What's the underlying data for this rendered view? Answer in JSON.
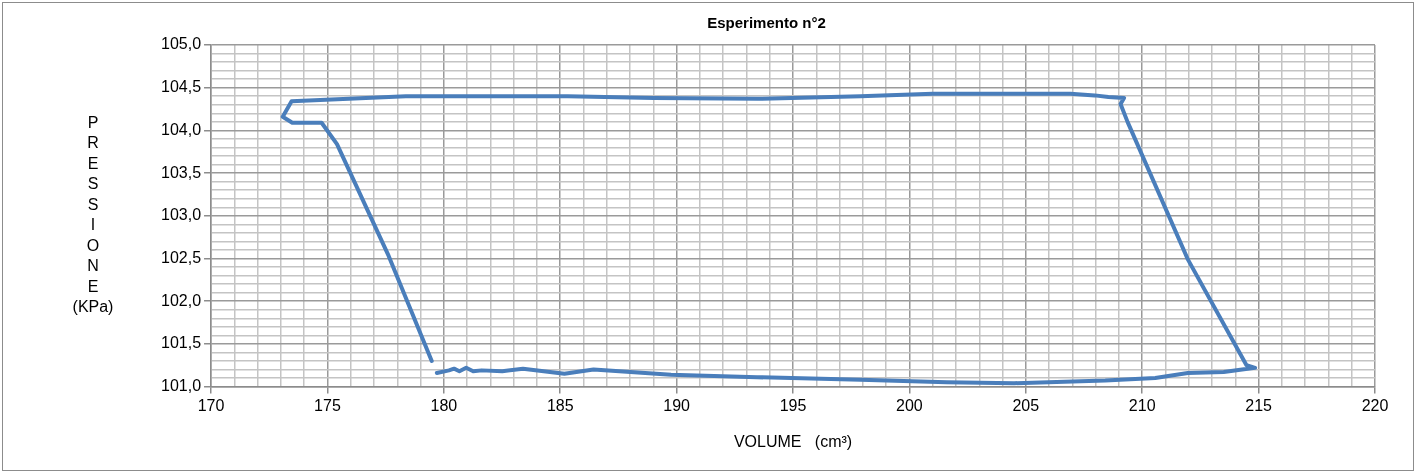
{
  "chart_data": {
    "type": "line",
    "title": "Esperimento n°2",
    "xlabel": "VOLUME   (cm³)",
    "ylabel": "PRESSIONE (KPa)",
    "series": [
      {
        "color": "#4a7ebb",
        "x": [
          179.7,
          180.22,
          180.44,
          180.67,
          180.96,
          181.26,
          181.63,
          182.51,
          183.4,
          185.18,
          186.43,
          189.76,
          193.46,
          197.9,
          201.6,
          204.5,
          208.41,
          210.56,
          211.96,
          213.5,
          214.85,
          214.48,
          211.96,
          209.37,
          209.07,
          209.22,
          208.55,
          207.96,
          206.92,
          205.3,
          201.0,
          197.9,
          193.46,
          189.02,
          185.33,
          178.37,
          173.46,
          173.08,
          173.49,
          174.75,
          175.41,
          177.63,
          179.48
        ],
        "values": [
          101.16,
          101.19,
          101.21,
          101.18,
          101.22,
          101.18,
          101.19,
          101.18,
          101.21,
          101.15,
          101.2,
          101.14,
          101.11,
          101.08,
          101.05,
          101.04,
          101.07,
          101.1,
          101.16,
          101.17,
          101.22,
          101.25,
          102.49,
          104.1,
          104.31,
          104.38,
          104.39,
          104.41,
          104.43,
          104.43,
          104.43,
          104.4,
          104.37,
          104.38,
          104.4,
          104.4,
          104.34,
          104.16,
          104.09,
          104.09,
          103.84,
          102.53,
          101.3
        ]
      }
    ],
    "xlim": [
      170,
      220
    ],
    "xticks": [
      170,
      {
        "value": 171,
        "label": null
      },
      {
        "value": 172,
        "label": null
      },
      {
        "value": 173,
        "label": null
      },
      {
        "value": 174,
        "label": null
      },
      175,
      {
        "value": 176,
        "label": null
      },
      {
        "value": 177,
        "label": null
      },
      {
        "value": 178,
        "label": null
      },
      {
        "value": 179,
        "label": null
      },
      180,
      {
        "value": 181,
        "label": null
      },
      {
        "value": 182,
        "label": null
      },
      {
        "value": 183,
        "label": null
      },
      {
        "value": 184,
        "label": null
      },
      185,
      {
        "value": 186,
        "label": null
      },
      {
        "value": 187,
        "label": null
      },
      {
        "value": 188,
        "label": null
      },
      {
        "value": 189,
        "label": null
      },
      190,
      {
        "value": 191,
        "label": null
      },
      {
        "value": 192,
        "label": null
      },
      {
        "value": 193,
        "label": null
      },
      {
        "value": 194,
        "label": null
      },
      195,
      {
        "value": 196,
        "label": null
      },
      {
        "value": 197,
        "label": null
      },
      {
        "value": 198,
        "label": null
      },
      {
        "value": 199,
        "label": null
      },
      200,
      {
        "value": 201,
        "label": null
      },
      {
        "value": 202,
        "label": null
      },
      {
        "value": 203,
        "label": null
      },
      {
        "value": 204,
        "label": null
      },
      205,
      {
        "value": 206,
        "label": null
      },
      {
        "value": 207,
        "label": null
      },
      {
        "value": 208,
        "label": null
      },
      {
        "value": 209,
        "label": null
      },
      210,
      {
        "value": 211,
        "label": null
      },
      {
        "value": 212,
        "label": null
      },
      {
        "value": 213,
        "label": null
      },
      {
        "value": 214,
        "label": null
      },
      215,
      {
        "value": 216,
        "label": null
      },
      {
        "value": 217,
        "label": null
      },
      {
        "value": 218,
        "label": null
      },
      {
        "value": 219,
        "label": null
      },
      220
    ],
    "ylim": [
      101,
      105
    ],
    "yticks": [
      {
        "value": 101,
        "label": "101,0"
      },
      {
        "value": 101.1,
        "label": null
      },
      {
        "value": 101.2,
        "label": null
      },
      {
        "value": 101.3,
        "label": null
      },
      {
        "value": 101.4,
        "label": null
      },
      {
        "value": 101.5,
        "label": "101,5"
      },
      {
        "value": 101.6,
        "label": null
      },
      {
        "value": 101.7,
        "label": null
      },
      {
        "value": 101.8,
        "label": null
      },
      {
        "value": 101.9,
        "label": null
      },
      {
        "value": 102,
        "label": "102,0"
      },
      {
        "value": 102.1,
        "label": null
      },
      {
        "value": 102.2,
        "label": null
      },
      {
        "value": 102.3,
        "label": null
      },
      {
        "value": 102.4,
        "label": null
      },
      {
        "value": 102.5,
        "label": "102,5"
      },
      {
        "value": 102.6,
        "label": null
      },
      {
        "value": 102.7,
        "label": null
      },
      {
        "value": 102.8,
        "label": null
      },
      {
        "value": 102.9,
        "label": null
      },
      {
        "value": 103,
        "label": "103,0"
      },
      {
        "value": 103.1,
        "label": null
      },
      {
        "value": 103.2,
        "label": null
      },
      {
        "value": 103.3,
        "label": null
      },
      {
        "value": 103.4,
        "label": null
      },
      {
        "value": 103.5,
        "label": "103,5"
      },
      {
        "value": 103.6,
        "label": null
      },
      {
        "value": 103.7,
        "label": null
      },
      {
        "value": 103.8,
        "label": null
      },
      {
        "value": 103.9,
        "label": null
      },
      {
        "value": 104,
        "label": "104,0"
      },
      {
        "value": 104.1,
        "label": null
      },
      {
        "value": 104.2,
        "label": null
      },
      {
        "value": 104.3,
        "label": null
      },
      {
        "value": 104.4,
        "label": null
      },
      {
        "value": 104.5,
        "label": "104,5"
      },
      {
        "value": 104.6,
        "label": null
      },
      {
        "value": 104.7,
        "label": null
      },
      {
        "value": 104.8,
        "label": null
      },
      {
        "value": 104.9,
        "label": null
      },
      {
        "value": 105,
        "label": "105,0"
      }
    ],
    "grid": true,
    "marker": "none",
    "line_style": "solid"
  }
}
